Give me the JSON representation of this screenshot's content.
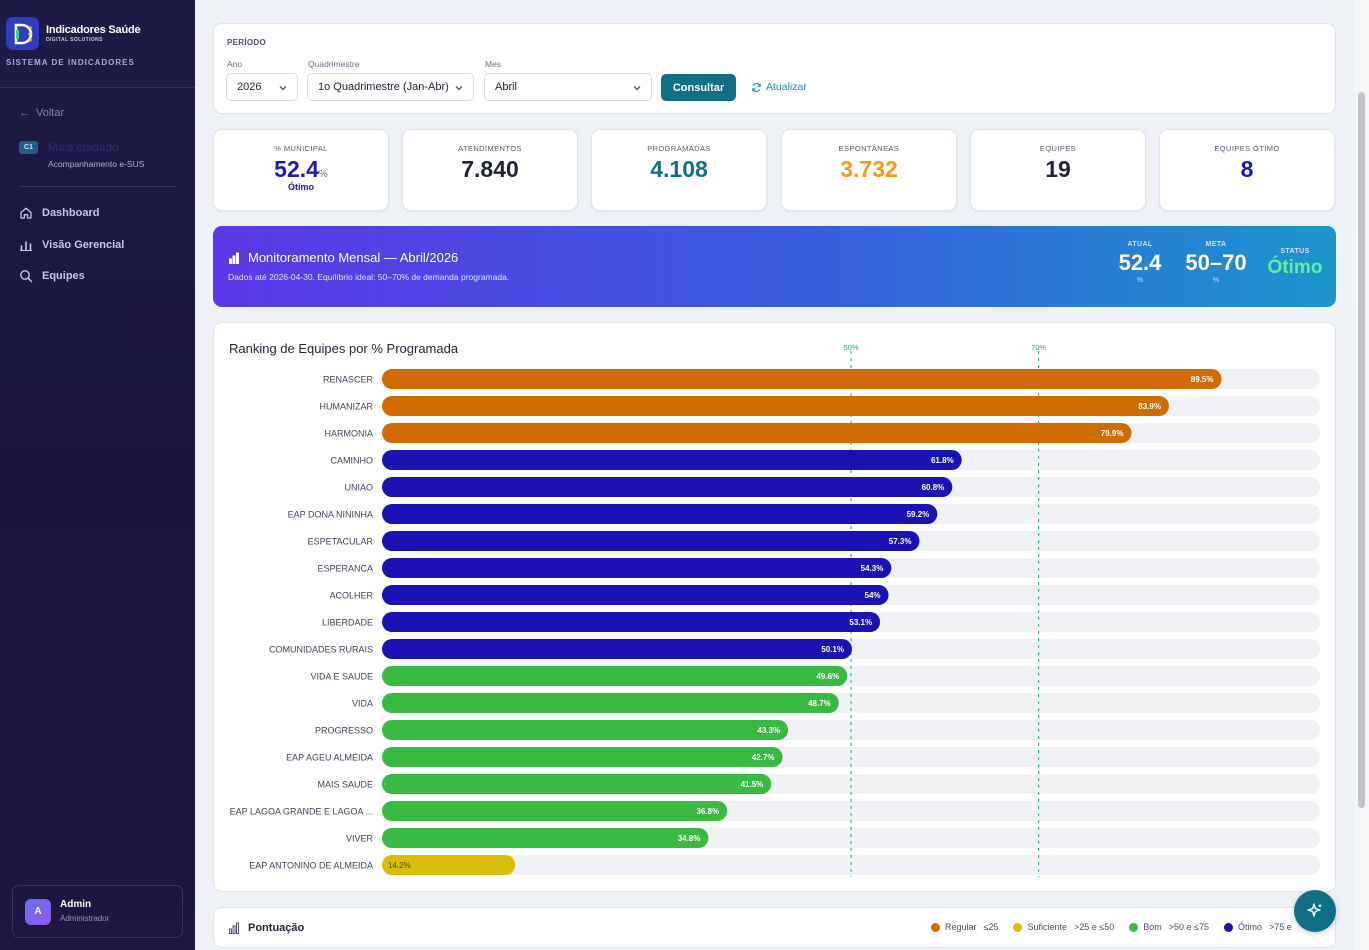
{
  "brand": {
    "name": "Indicadores Saúde",
    "subtitle": "DIGITAL SOLUTIONS",
    "system": "SISTEMA DE INDICADORES"
  },
  "sidebar": {
    "back_label": "Voltar",
    "module": {
      "badge": "C1",
      "title": "Mais cuidado",
      "subtitle": "Acompanhamento e-SUS"
    },
    "nav": [
      {
        "label": "Dashboard",
        "icon": "home-icon"
      },
      {
        "label": "Visão Gerencial",
        "icon": "bar-chart-icon"
      },
      {
        "label": "Equipes",
        "icon": "search-icon"
      }
    ],
    "user": {
      "initial": "A",
      "name": "Admin",
      "role": "Administrador"
    }
  },
  "filters": {
    "title": "PERÍODO",
    "ano": {
      "label": "Ano",
      "value": "2026"
    },
    "quadrimestre": {
      "label": "Quadrimestre",
      "value": "1o Quadrimestre (Jan-Abr)"
    },
    "mes": {
      "label": "Mes",
      "value": "Abril"
    },
    "consultar_label": "Consultar",
    "atualizar_label": "Atualizar"
  },
  "kpis": [
    {
      "label": "% MUNICIPAL",
      "value": "52.4",
      "unit": "%",
      "sub": "Ótimo",
      "color": "#1a1ab8"
    },
    {
      "label": "ATENDIMENTOS",
      "value": "7.840",
      "color": "#1e2433"
    },
    {
      "label": "PROGRAMADAS",
      "value": "4.108",
      "color": "#0f6f87"
    },
    {
      "label": "ESPONTÂNEAS",
      "value": "3.732",
      "color": "#f39a12"
    },
    {
      "label": "EQUIPES",
      "value": "19",
      "color": "#1e2433"
    },
    {
      "label": "EQUIPES ÓTIMO",
      "value": "8",
      "color": "#1a1ab8"
    }
  ],
  "banner": {
    "title": "Monitoramento Mensal — Abril/2026",
    "subtitle": "Dados até 2026-04-30. Equilíbrio ideal: 50–70% de demanda programada.",
    "atual": {
      "label": "ATUAL",
      "value": "52.4",
      "unit": "%"
    },
    "meta": {
      "label": "META",
      "value": "50–70",
      "unit": "%"
    },
    "status": {
      "label": "STATUS",
      "value": "Ótimo",
      "color": "#5ef0a0"
    }
  },
  "chart_data": {
    "type": "bar",
    "orientation": "horizontal",
    "title": "Ranking de Equipes por % Programada",
    "xlim": [
      0,
      100
    ],
    "reference_lines": [
      {
        "value": 50,
        "label": "50%"
      },
      {
        "value": 70,
        "label": "70%"
      }
    ],
    "colors": {
      "regular": "#d97200",
      "suficiente": "#d9bd0a",
      "bom": "#38b940",
      "otimo": "#1a12b3",
      "track": "#f0f1f4"
    },
    "bars": [
      {
        "team": "RENASCER",
        "value": 89.5,
        "label": "89.5%",
        "color": "#cf6b00"
      },
      {
        "team": "HUMANIZAR",
        "value": 83.9,
        "label": "83.9%",
        "color": "#cf6b00"
      },
      {
        "team": "HARMONIA",
        "value": 79.9,
        "label": "79.9%",
        "color": "#cf6b00"
      },
      {
        "team": "CAMINHO",
        "value": 61.8,
        "label": "61.8%",
        "color": "#1a12b3"
      },
      {
        "team": "UNIAO",
        "value": 60.8,
        "label": "60.8%",
        "color": "#1a12b3"
      },
      {
        "team": "EAP DONA NININHA",
        "value": 59.2,
        "label": "59.2%",
        "color": "#1a12b3"
      },
      {
        "team": "ESPETACULAR",
        "value": 57.3,
        "label": "57.3%",
        "color": "#1a12b3"
      },
      {
        "team": "ESPERANCA",
        "value": 54.3,
        "label": "54.3%",
        "color": "#1a12b3"
      },
      {
        "team": "ACOLHER",
        "value": 54,
        "label": "54%",
        "color": "#1a12b3"
      },
      {
        "team": "LIBERDADE",
        "value": 53.1,
        "label": "53.1%",
        "color": "#1a12b3"
      },
      {
        "team": "COMUNIDADES RURAIS",
        "value": 50.1,
        "label": "50.1%",
        "color": "#1a12b3"
      },
      {
        "team": "VIDA E SAUDE",
        "value": 49.6,
        "label": "49.6%",
        "color": "#38b940"
      },
      {
        "team": "VIDA",
        "value": 48.7,
        "label": "48.7%",
        "color": "#38b940"
      },
      {
        "team": "PROGRESSO",
        "value": 43.3,
        "label": "43.3%",
        "color": "#38b940"
      },
      {
        "team": "EAP AGEU ALMEIDA",
        "value": 42.7,
        "label": "42.7%",
        "color": "#38b940"
      },
      {
        "team": "MAIS SAUDE",
        "value": 41.5,
        "label": "41.5%",
        "color": "#38b940"
      },
      {
        "team": "EAP LAGOA GRANDE E LAGOA ...",
        "value": 36.8,
        "label": "36.8%",
        "color": "#38b940"
      },
      {
        "team": "VIVER",
        "value": 34.8,
        "label": "34.8%",
        "color": "#38b940"
      },
      {
        "team": "EAP ANTONINO DE ALMEIDA",
        "value": 14.2,
        "label": "14.2%",
        "color": "#d9bd0a"
      }
    ]
  },
  "pontuacao": {
    "title": "Pontuação",
    "legend": [
      {
        "label": "Regular",
        "range": "≤25",
        "color": "#cf6b00"
      },
      {
        "label": "Suficiente",
        "range": ">25 e ≤50",
        "color": "#d9bd0a"
      },
      {
        "label": "Bom",
        "range": ">50 e ≤75",
        "color": "#38b940"
      },
      {
        "label": "Ótimo",
        "range": ">75 e",
        "color": "#1a12b3"
      }
    ]
  },
  "fab": {
    "icon": "sparkle-icon"
  }
}
